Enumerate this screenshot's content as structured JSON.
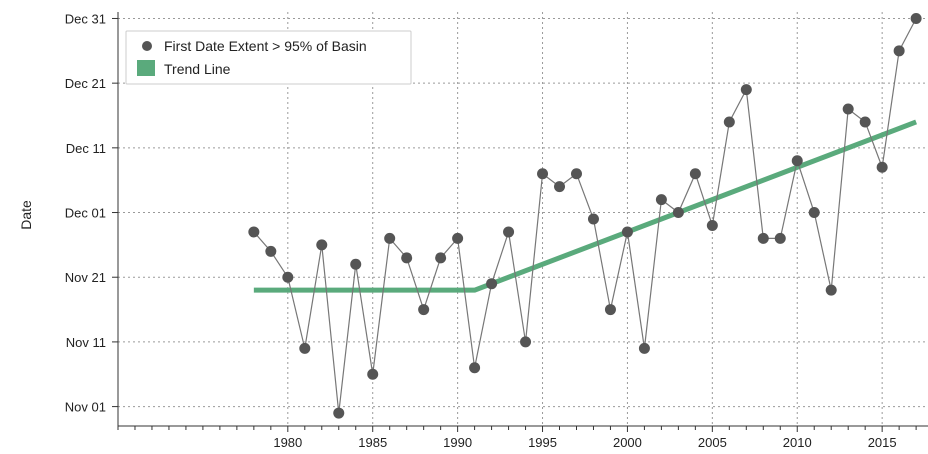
{
  "chart_data": {
    "type": "line",
    "title": "",
    "xlabel": "",
    "ylabel": "Date",
    "xlim": [
      1970,
      2017.7
    ],
    "ylim": [
      "Oct 29",
      "Jan 01"
    ],
    "x_ticks": [
      1980,
      1985,
      1990,
      1995,
      2000,
      2005,
      2010,
      2015
    ],
    "y_ticks": [
      "Nov 01",
      "Nov 11",
      "Nov 21",
      "Dec 01",
      "Dec 11",
      "Dec 21",
      "Dec 31"
    ],
    "grid": true,
    "legend_position": "top-left",
    "series": [
      {
        "name": "First Date Extent > 95% of Basin",
        "style": "line-with-markers",
        "marker_color": "#555555",
        "line_color": "#777777",
        "x": [
          1978,
          1979,
          1980,
          1981,
          1982,
          1983,
          1984,
          1985,
          1986,
          1987,
          1988,
          1989,
          1990,
          1991,
          1992,
          1993,
          1994,
          1995,
          1996,
          1997,
          1998,
          1999,
          2000,
          2001,
          2002,
          2003,
          2004,
          2005,
          2006,
          2007,
          2008,
          2009,
          2010,
          2011,
          2012,
          2013,
          2014,
          2015,
          2016,
          2017
        ],
        "y": [
          "Nov 28",
          "Nov 25",
          "Nov 21",
          "Nov 10",
          "Nov 26",
          "Oct 31",
          "Nov 23",
          "Nov 06",
          "Nov 27",
          "Nov 24",
          "Nov 16",
          "Nov 24",
          "Nov 27",
          "Nov 07",
          "Nov 20",
          "Nov 28",
          "Nov 11",
          "Dec 07",
          "Dec 05",
          "Dec 07",
          "Nov 30",
          "Nov 16",
          "Nov 28",
          "Nov 10",
          "Dec 03",
          "Dec 01",
          "Dec 07",
          "Nov 29",
          "Dec 15",
          "Dec 20",
          "Nov 27",
          "Nov 27",
          "Dec 09",
          "Dec 01",
          "Nov 19",
          "Dec 17",
          "Dec 15",
          "Dec 08",
          "Dec 26",
          "Dec 31"
        ]
      },
      {
        "name": "Trend Line",
        "style": "thick-line",
        "line_color": "#5aaa7c",
        "x": [
          1978,
          1991,
          2017
        ],
        "y": [
          "Nov 19",
          "Nov 19",
          "Dec 15"
        ]
      }
    ]
  }
}
